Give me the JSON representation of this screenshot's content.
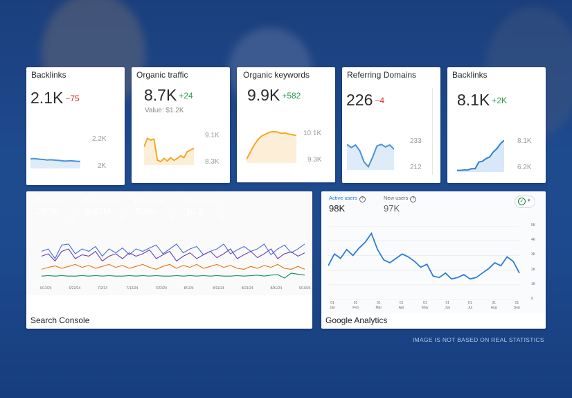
{
  "kpis": [
    {
      "title": "Backlinks",
      "value": "2.1K",
      "delta": "−75",
      "delta_sign": "neg",
      "sub": "",
      "axis_top": "2.2K",
      "axis_bottom": "2K",
      "color": "#4a90d9",
      "series": [
        0.62,
        0.6,
        0.62,
        0.63,
        0.64,
        0.66,
        0.65,
        0.66,
        0.67,
        0.68,
        0.7,
        0.7,
        0.69,
        0.7,
        0.71,
        0.72
      ]
    },
    {
      "title": "Organic traffic",
      "value": "8.7K",
      "delta": "+24",
      "delta_sign": "pos",
      "sub": "Value: $1.2K",
      "axis_top": "9.1K",
      "axis_bottom": "8.3K",
      "color": "#f5a623",
      "series": [
        0.45,
        0.2,
        0.25,
        0.22,
        0.85,
        0.9,
        0.8,
        0.88,
        0.78,
        0.86,
        0.8,
        0.72,
        0.78,
        0.6,
        0.55,
        0.5
      ]
    },
    {
      "title": "Organic keywords",
      "value": "9.9K",
      "delta": "+582",
      "delta_sign": "pos",
      "sub": "",
      "axis_top": "10.1K",
      "axis_bottom": "9.3K",
      "color": "#f5a623",
      "series": [
        0.9,
        0.7,
        0.5,
        0.35,
        0.25,
        0.2,
        0.15,
        0.13,
        0.14,
        0.18,
        0.17,
        0.2,
        0.22,
        0.24
      ]
    },
    {
      "title": "Referring Domains",
      "value": "226",
      "delta": "−4",
      "delta_sign": "neg",
      "sub": "",
      "axis_top": "233",
      "axis_bottom": "212",
      "color": "#4a90d9",
      "series": [
        0.2,
        0.3,
        0.22,
        0.4,
        0.75,
        0.9,
        0.6,
        0.25,
        0.2,
        0.28,
        0.22,
        0.35
      ]
    },
    {
      "title": "Backlinks",
      "value": "8.1K",
      "delta": "+2K",
      "delta_sign": "pos",
      "sub": "",
      "axis_top": "8.1K",
      "axis_bottom": "6.2K",
      "color": "#2f7fd6",
      "series": [
        0.95,
        0.95,
        0.94,
        0.94,
        0.9,
        0.9,
        0.7,
        0.68,
        0.6,
        0.55,
        0.4,
        0.3,
        0.15,
        0.05
      ]
    }
  ],
  "search_console": {
    "caption": "Search Console",
    "tiles": [
      {
        "label": "Total clicks",
        "value": "20.7K",
        "color": "#4285f4"
      },
      {
        "label": "Total impressions",
        "value": "5.42M",
        "color": "#5e35b1"
      },
      {
        "label": "Average CTR",
        "value": "0.4%",
        "color": "#00897b"
      },
      {
        "label": "Average position",
        "value": "10.2",
        "color": "#e8710a"
      }
    ],
    "dates": [
      "6/12/24",
      "6/22/24",
      "7/2/24",
      "7/12/24",
      "7/22/24",
      "8/1/24",
      "8/11/24",
      "8/21/24",
      "8/31/24",
      "9/10/24"
    ],
    "series": [
      {
        "color": "#4a6fd6",
        "values": [
          0.35,
          0.3,
          0.5,
          0.22,
          0.2,
          0.4,
          0.3,
          0.35,
          0.25,
          0.45,
          0.3,
          0.38,
          0.28,
          0.42,
          0.3,
          0.35,
          0.28,
          0.22,
          0.4,
          0.3,
          0.2,
          0.38,
          0.3,
          0.25,
          0.42,
          0.35,
          0.3,
          0.2,
          0.4,
          0.32,
          0.25,
          0.35,
          0.3,
          0.2,
          0.42,
          0.3,
          0.22,
          0.38,
          0.3,
          0.2
        ]
      },
      {
        "color": "#6a3fb5",
        "values": [
          0.45,
          0.4,
          0.55,
          0.35,
          0.3,
          0.5,
          0.42,
          0.45,
          0.35,
          0.55,
          0.45,
          0.4,
          0.5,
          0.38,
          0.45,
          0.4,
          0.32,
          0.5,
          0.42,
          0.35,
          0.55,
          0.45,
          0.38,
          0.5,
          0.42,
          0.35,
          0.48,
          0.4,
          0.3,
          0.5,
          0.42,
          0.35,
          0.48,
          0.4,
          0.3,
          0.5,
          0.4,
          0.36,
          0.45,
          0.38
        ]
      },
      {
        "color": "#e8710a",
        "values": [
          0.72,
          0.68,
          0.65,
          0.7,
          0.66,
          0.62,
          0.68,
          0.64,
          0.7,
          0.66,
          0.62,
          0.68,
          0.64,
          0.7,
          0.66,
          0.62,
          0.68,
          0.72,
          0.66,
          0.62,
          0.7,
          0.64,
          0.68,
          0.62,
          0.7,
          0.66,
          0.62,
          0.68,
          0.64,
          0.7,
          0.72,
          0.66,
          0.7,
          0.64,
          0.68,
          0.62,
          0.7,
          0.72,
          0.66,
          0.72
        ]
      },
      {
        "color": "#0f8a66",
        "values": [
          0.86,
          0.85,
          0.86,
          0.85,
          0.86,
          0.86,
          0.85,
          0.86,
          0.85,
          0.86,
          0.85,
          0.86,
          0.86,
          0.85,
          0.86,
          0.85,
          0.86,
          0.85,
          0.86,
          0.86,
          0.85,
          0.86,
          0.85,
          0.86,
          0.85,
          0.86,
          0.85,
          0.86,
          0.86,
          0.85,
          0.86,
          0.85,
          0.84,
          0.86,
          0.84,
          0.83,
          0.9,
          0.8,
          0.82,
          0.84
        ]
      }
    ]
  },
  "google_analytics": {
    "caption": "Google Analytics",
    "metrics": [
      {
        "label": "Active users",
        "value": "98K",
        "label_color": "#1a73e8",
        "value_color": "#202124"
      },
      {
        "label": "New users",
        "value": "97K",
        "label_color": "#5f6368",
        "value_color": "#5f6368"
      }
    ],
    "y_ticks": [
      "5K",
      "4K",
      "3K",
      "2K",
      "1K",
      "0"
    ],
    "x_ticks": [
      {
        "day": "01",
        "month": "Jan"
      },
      {
        "day": "01",
        "month": "Feb"
      },
      {
        "day": "01",
        "month": "Mar"
      },
      {
        "day": "01",
        "month": "Apr"
      },
      {
        "day": "01",
        "month": "May"
      },
      {
        "day": "01",
        "month": "Jun"
      },
      {
        "day": "01",
        "month": "Jul"
      },
      {
        "day": "01",
        "month": "Aug"
      },
      {
        "day": "01",
        "month": "Sep"
      }
    ],
    "series": [
      2.3,
      3.1,
      2.8,
      3.4,
      3.0,
      3.5,
      3.9,
      4.5,
      3.4,
      2.7,
      2.5,
      2.8,
      3.1,
      2.9,
      2.6,
      2.2,
      2.4,
      1.6,
      1.5,
      1.8,
      1.4,
      1.5,
      1.7,
      1.4,
      1.5,
      1.8,
      2.1,
      2.5,
      2.3,
      2.9,
      2.6,
      1.8
    ]
  },
  "disclaimer": "IMAGE IS NOT BASED ON REAL STATISTICS"
}
